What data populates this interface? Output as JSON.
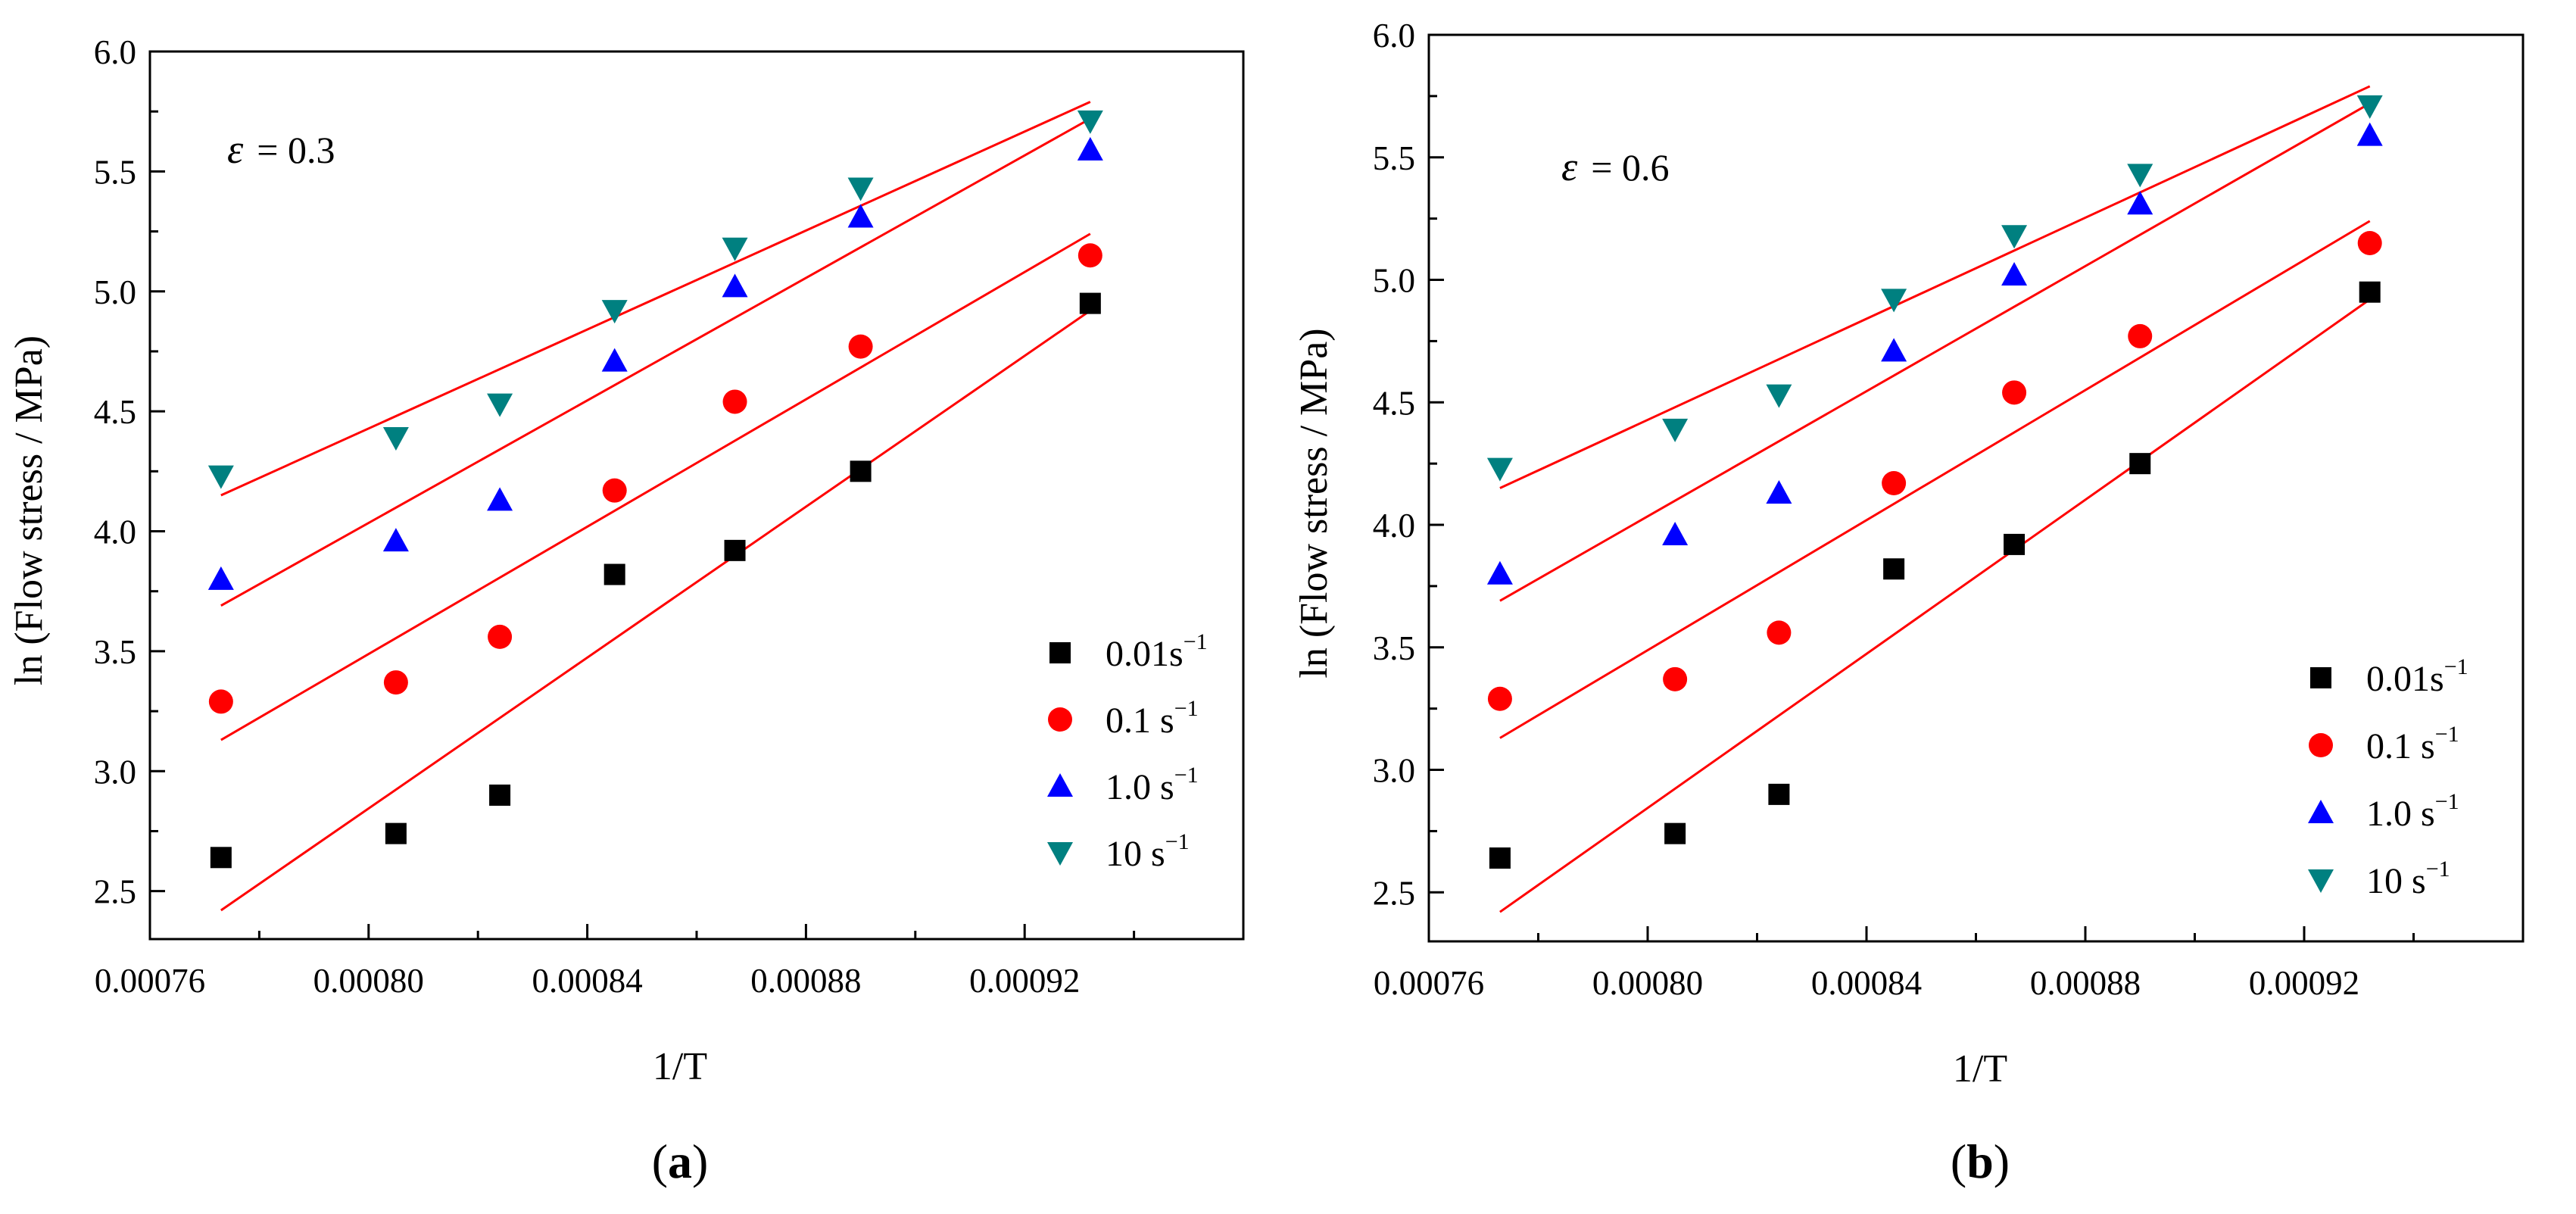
{
  "colors": {
    "series_0": "#000000",
    "series_1": "#ff0000",
    "series_2": "#0000ff",
    "series_3": "#008080",
    "fit_line": "#ff0000"
  },
  "chart_data": [
    {
      "type": "scatter",
      "panel_label": "a",
      "annotation": {
        "symbol": "ε",
        "text": "= 0.3"
      },
      "xlabel": "1/T",
      "ylabel": "ln (Flow stress / MPa)",
      "xlim": [
        0.00076,
        0.00096
      ],
      "ylim": [
        2.3,
        6.0
      ],
      "xticks": [
        0.00076,
        0.0008,
        0.00084,
        0.00088,
        0.00092
      ],
      "xtick_labels": [
        "0.00076",
        "0.00080",
        "0.00084",
        "0.00088",
        "0.00092"
      ],
      "yticks": [
        2.5,
        3.0,
        3.5,
        4.0,
        4.5,
        5.0,
        5.5,
        6.0
      ],
      "ytick_labels": [
        "2.5",
        "3.0",
        "3.5",
        "4.0",
        "4.5",
        "5.0",
        "5.5",
        "6.0"
      ],
      "grid": false,
      "legend_position": "bottom-right",
      "x": [
        0.000773,
        0.000805,
        0.000824,
        0.000845,
        0.000867,
        0.00089,
        0.000932
      ],
      "series": [
        {
          "legend": "0.01s",
          "legend_sup": "−1",
          "marker": "square",
          "values": [
            2.64,
            2.74,
            2.9,
            3.82,
            3.92,
            4.25,
            4.95
          ],
          "fit": [
            2.42,
            4.92
          ]
        },
        {
          "legend": "0.1 s",
          "legend_sup": "−1",
          "marker": "circle",
          "values": [
            3.29,
            3.37,
            3.56,
            4.17,
            4.54,
            4.77,
            5.15
          ],
          "fit": [
            3.13,
            5.24
          ]
        },
        {
          "legend": "1.0 s",
          "legend_sup": "−1",
          "marker": "triangle-up",
          "values": [
            3.8,
            3.96,
            4.13,
            4.71,
            5.02,
            5.31,
            5.59
          ],
          "fit": [
            3.69,
            5.72
          ]
        },
        {
          "legend": "10 s",
          "legend_sup": "−1",
          "marker": "triangle-down",
          "values": [
            4.23,
            4.39,
            4.53,
            4.92,
            5.18,
            5.43,
            5.71
          ],
          "fit": [
            4.15,
            5.79
          ]
        }
      ]
    },
    {
      "type": "scatter",
      "panel_label": "b",
      "annotation": {
        "symbol": "ε",
        "text": "= 0.6"
      },
      "xlabel": "1/T",
      "ylabel": "ln (Flow stress / MPa)",
      "xlim": [
        0.00076,
        0.00096
      ],
      "ylim": [
        2.3,
        6.0
      ],
      "xticks": [
        0.00076,
        0.0008,
        0.00084,
        0.00088,
        0.00092
      ],
      "xtick_labels": [
        "0.00076",
        "0.00080",
        "0.00084",
        "0.00088",
        "0.00092"
      ],
      "yticks": [
        2.5,
        3.0,
        3.5,
        4.0,
        4.5,
        5.0,
        5.5,
        6.0
      ],
      "ytick_labels": [
        "2.5",
        "3.0",
        "3.5",
        "4.0",
        "4.5",
        "5.0",
        "5.5",
        "6.0"
      ],
      "grid": false,
      "legend_position": "bottom-right",
      "x": [
        0.000773,
        0.000805,
        0.000824,
        0.000845,
        0.000867,
        0.00089,
        0.000932
      ],
      "series": [
        {
          "legend": "0.01s",
          "legend_sup": "−1",
          "marker": "square",
          "values": [
            2.64,
            2.74,
            2.9,
            3.82,
            3.92,
            4.25,
            4.95
          ],
          "fit": [
            2.42,
            4.92
          ]
        },
        {
          "legend": "0.1 s",
          "legend_sup": "−1",
          "marker": "circle",
          "values": [
            3.29,
            3.37,
            3.56,
            4.17,
            4.54,
            4.77,
            5.15
          ],
          "fit": [
            3.13,
            5.24
          ]
        },
        {
          "legend": "1.0 s",
          "legend_sup": "−1",
          "marker": "triangle-up",
          "values": [
            3.8,
            3.96,
            4.13,
            4.71,
            5.02,
            5.31,
            5.59
          ],
          "fit": [
            3.69,
            5.72
          ]
        },
        {
          "legend": "10 s",
          "legend_sup": "−1",
          "marker": "triangle-down",
          "values": [
            4.23,
            4.39,
            4.53,
            4.92,
            5.18,
            5.43,
            5.71
          ],
          "fit": [
            4.15,
            5.79
          ]
        }
      ]
    }
  ]
}
